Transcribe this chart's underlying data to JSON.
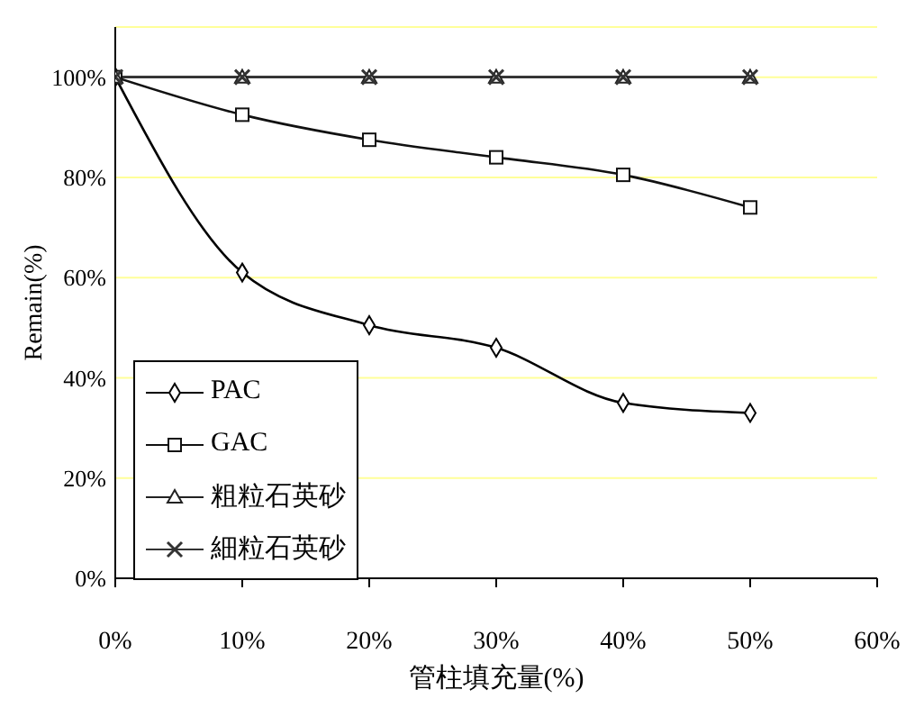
{
  "chart_data": {
    "type": "line",
    "xlabel": "管柱填充量(%)",
    "ylabel": "Remain(%)",
    "x": [
      0,
      10,
      20,
      30,
      40,
      50
    ],
    "xlim": [
      0,
      60
    ],
    "xticks": [
      {
        "value": 0,
        "label": "0%"
      },
      {
        "value": 10,
        "label": "10%"
      },
      {
        "value": 20,
        "label": "20%"
      },
      {
        "value": 30,
        "label": "30%"
      },
      {
        "value": 40,
        "label": "40%"
      },
      {
        "value": 50,
        "label": "50%"
      },
      {
        "value": 60,
        "label": "60%"
      }
    ],
    "ylim": [
      0,
      110
    ],
    "yticks": [
      {
        "value": 0,
        "label": "0%"
      },
      {
        "value": 20,
        "label": "20%"
      },
      {
        "value": 40,
        "label": "40%"
      },
      {
        "value": 60,
        "label": "60%"
      },
      {
        "value": 80,
        "label": "80%"
      },
      {
        "value": 100,
        "label": "100%"
      }
    ],
    "grid": "y",
    "legend": "bottom left",
    "series": [
      {
        "name": "PAC",
        "color": "#000000",
        "marker": "diamond",
        "values": [
          100,
          61,
          50.5,
          46,
          35,
          33
        ]
      },
      {
        "name": "GAC",
        "color": "#111111",
        "marker": "square",
        "values": [
          100,
          92.5,
          87.5,
          84,
          80.5,
          74
        ]
      },
      {
        "name": "粗粒石英砂",
        "color": "#222222",
        "marker": "triangle",
        "values": [
          100,
          100,
          100,
          100,
          100,
          100
        ]
      },
      {
        "name": "細粒石英砂",
        "color": "#333333",
        "marker": "cross",
        "values": [
          100,
          100,
          100,
          100,
          100,
          100
        ]
      }
    ]
  }
}
